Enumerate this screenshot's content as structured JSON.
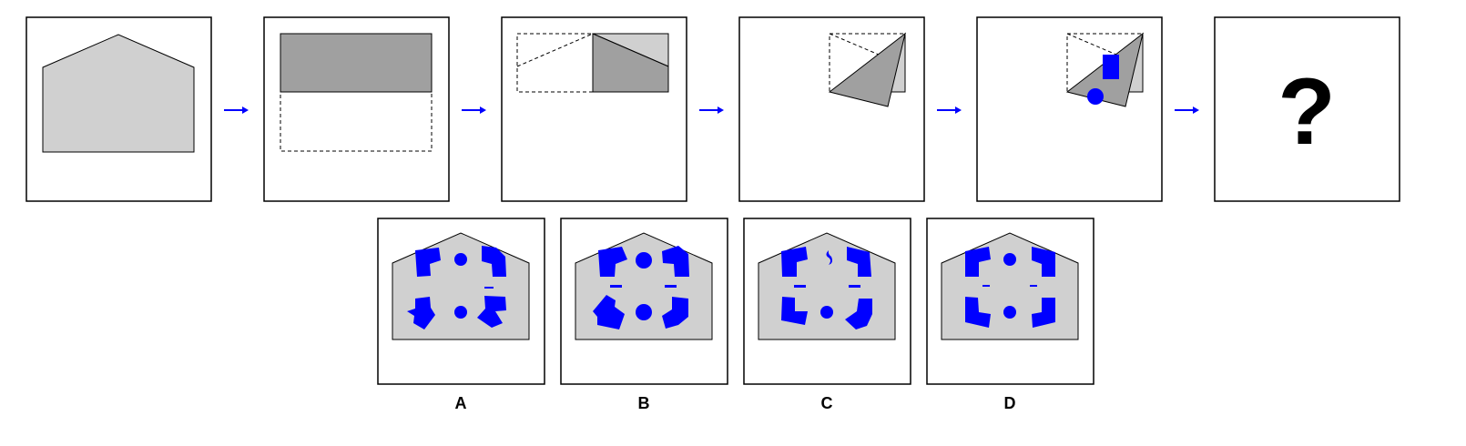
{
  "puzzle": {
    "steps_count": 6,
    "question_mark": "?"
  },
  "options": {
    "labels": [
      "A",
      "B",
      "C",
      "D"
    ]
  },
  "colors": {
    "paper_fill": "#d0d0d0",
    "folded_fill": "#a0a0a0",
    "hole_fill": "#0000ff",
    "arrow": "#0000ff",
    "frame_stroke": "#000000"
  }
}
